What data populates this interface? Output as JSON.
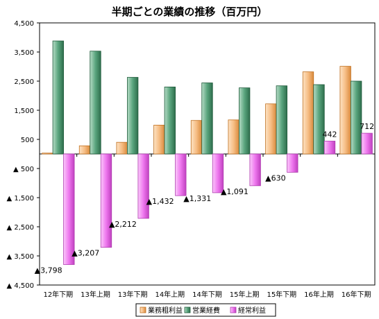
{
  "chart_data": {
    "type": "bar",
    "title": "半期ごとの業績の推移（百万円）",
    "categories": [
      "12年下期",
      "13年上期",
      "13年下期",
      "14年上期",
      "14年下期",
      "15年上期",
      "15年下期",
      "16年上期",
      "16年下期"
    ],
    "series": [
      {
        "name": "業務粗利益",
        "values": [
          30,
          280,
          400,
          990,
          1150,
          1170,
          1720,
          2820,
          3010
        ]
      },
      {
        "name": "営業経費",
        "values": [
          3880,
          3530,
          2630,
          2300,
          2440,
          2270,
          2340,
          2380,
          2500
        ]
      },
      {
        "name": "経常利益",
        "values": [
          -3798,
          -3207,
          -2212,
          -1432,
          -1331,
          -1091,
          -630,
          442,
          712
        ]
      }
    ],
    "data_labels": [
      "▲3,798",
      "▲3,207",
      "▲2,212",
      "▲1,432",
      "▲1,331",
      "▲1,091",
      "▲630",
      "442",
      "712"
    ],
    "ylim": [
      -4500,
      4500
    ],
    "yticks": [
      4500,
      3500,
      2500,
      1500,
      500,
      -500,
      -1500,
      -2500,
      -3500,
      -4500
    ],
    "ytick_labels": [
      "4,500",
      "3,500",
      "2,500",
      "1,500",
      "500",
      "▲ 500",
      "▲ 1,500",
      "▲ 2,500",
      "▲ 3,500",
      "▲ 4,500"
    ],
    "grid": false,
    "legend_position": "bottom",
    "colors": {
      "series_fill": [
        "#f6bd84",
        "#4f9a73",
        "#ee77ee"
      ],
      "series_edge": [
        "#c07020",
        "#1e5a3a",
        "#b040b0"
      ],
      "background": "#ffffff",
      "axis": "#000000"
    }
  }
}
